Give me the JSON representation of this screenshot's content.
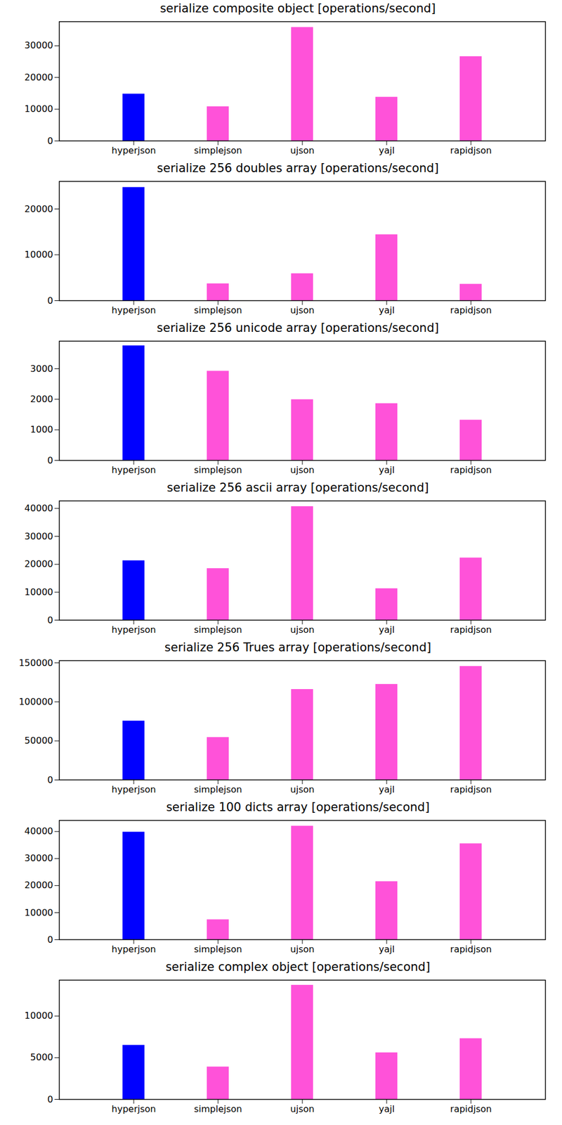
{
  "chart_data": [
    {
      "type": "bar",
      "title": "serialize composite object [operations/second]",
      "categories": [
        "hyperjson",
        "simplejson",
        "ujson",
        "yajl",
        "rapidjson"
      ],
      "values": [
        14800,
        10800,
        35800,
        13800,
        26600
      ],
      "colors": [
        "#0000ff",
        "#ff52d9",
        "#ff52d9",
        "#ff52d9",
        "#ff52d9"
      ],
      "ylim": [
        0,
        37600
      ],
      "yticks": [
        0,
        10000,
        20000,
        30000
      ]
    },
    {
      "type": "bar",
      "title": "serialize 256 doubles array [operations/second]",
      "categories": [
        "hyperjson",
        "simplejson",
        "ujson",
        "yajl",
        "rapidjson"
      ],
      "values": [
        24700,
        3700,
        5900,
        14400,
        3600
      ],
      "colors": [
        "#0000ff",
        "#ff52d9",
        "#ff52d9",
        "#ff52d9",
        "#ff52d9"
      ],
      "ylim": [
        0,
        26000
      ],
      "yticks": [
        0,
        10000,
        20000
      ]
    },
    {
      "type": "bar",
      "title": "serialize 256 unicode array [operations/second]",
      "categories": [
        "hyperjson",
        "simplejson",
        "ujson",
        "yajl",
        "rapidjson"
      ],
      "values": [
        3750,
        2920,
        1990,
        1860,
        1320
      ],
      "colors": [
        "#0000ff",
        "#ff52d9",
        "#ff52d9",
        "#ff52d9",
        "#ff52d9"
      ],
      "ylim": [
        0,
        3900
      ],
      "yticks": [
        0,
        1000,
        2000,
        3000
      ]
    },
    {
      "type": "bar",
      "title": "serialize 256 ascii array [operations/second]",
      "categories": [
        "hyperjson",
        "simplejson",
        "ujson",
        "yajl",
        "rapidjson"
      ],
      "values": [
        21300,
        18500,
        40700,
        11300,
        22300
      ],
      "colors": [
        "#0000ff",
        "#ff52d9",
        "#ff52d9",
        "#ff52d9",
        "#ff52d9"
      ],
      "ylim": [
        0,
        42700
      ],
      "yticks": [
        0,
        10000,
        20000,
        30000,
        40000
      ]
    },
    {
      "type": "bar",
      "title": "serialize 256 Trues array [operations/second]",
      "categories": [
        "hyperjson",
        "simplejson",
        "ujson",
        "yajl",
        "rapidjson"
      ],
      "values": [
        75500,
        54500,
        116000,
        122500,
        145500
      ],
      "colors": [
        "#0000ff",
        "#ff52d9",
        "#ff52d9",
        "#ff52d9",
        "#ff52d9"
      ],
      "ylim": [
        0,
        152800
      ],
      "yticks": [
        0,
        50000,
        100000,
        150000
      ]
    },
    {
      "type": "bar",
      "title": "serialize 100 dicts array [operations/second]",
      "categories": [
        "hyperjson",
        "simplejson",
        "ujson",
        "yajl",
        "rapidjson"
      ],
      "values": [
        39800,
        7400,
        42000,
        21500,
        35500
      ],
      "colors": [
        "#0000ff",
        "#ff52d9",
        "#ff52d9",
        "#ff52d9",
        "#ff52d9"
      ],
      "ylim": [
        0,
        44100
      ],
      "yticks": [
        0,
        10000,
        20000,
        30000,
        40000
      ]
    },
    {
      "type": "bar",
      "title": "serialize complex object [operations/second]",
      "categories": [
        "hyperjson",
        "simplejson",
        "ujson",
        "yajl",
        "rapidjson"
      ],
      "values": [
        6500,
        3900,
        13700,
        5600,
        7300
      ],
      "colors": [
        "#0000ff",
        "#ff52d9",
        "#ff52d9",
        "#ff52d9",
        "#ff52d9"
      ],
      "ylim": [
        0,
        14300
      ],
      "yticks": [
        0,
        5000,
        10000
      ]
    }
  ]
}
